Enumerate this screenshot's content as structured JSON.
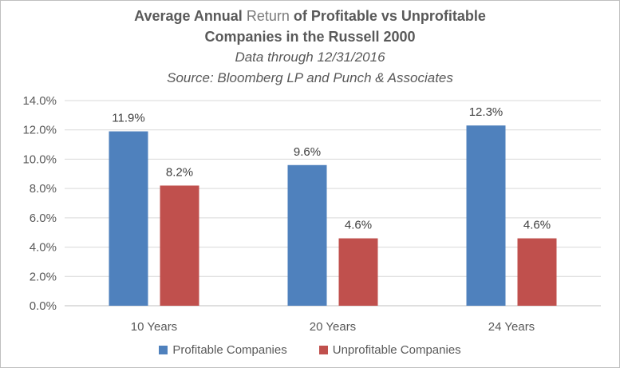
{
  "chart_data": {
    "type": "bar",
    "title_parts": [
      "Average Annual ",
      "Return",
      " of Profitable vs Unprofitable"
    ],
    "title_line2": "Companies in the Russell 2000",
    "subtitle_line1": "Data through 12/31/2016",
    "subtitle_line2": "Source: Bloomberg LP and Punch & Associates",
    "categories": [
      "10 Years",
      "20 Years",
      "24 Years"
    ],
    "series": [
      {
        "name": "Profitable Companies",
        "values": [
          11.9,
          9.6,
          12.3
        ],
        "labels": [
          "11.9%",
          "9.6%",
          "12.3%"
        ],
        "color": "#4f81bd"
      },
      {
        "name": "Unprofitable Companies",
        "values": [
          8.2,
          4.6,
          4.6
        ],
        "labels": [
          "8.2%",
          "4.6%",
          "4.6%"
        ],
        "color": "#c0504d"
      }
    ],
    "yticks": [
      0,
      2,
      4,
      6,
      8,
      10,
      12,
      14
    ],
    "ytick_labels": [
      "0.0%",
      "2.0%",
      "4.0%",
      "6.0%",
      "8.0%",
      "10.0%",
      "12.0%",
      "14.0%"
    ],
    "ylim": [
      0,
      14
    ],
    "grid": true,
    "legend_position": "bottom",
    "gridline_color": "#d9d9d9"
  }
}
